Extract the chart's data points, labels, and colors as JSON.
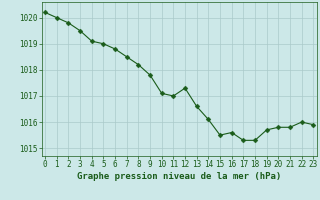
{
  "x": [
    0,
    1,
    2,
    3,
    4,
    5,
    6,
    7,
    8,
    9,
    10,
    11,
    12,
    13,
    14,
    15,
    16,
    17,
    18,
    19,
    20,
    21,
    22,
    23
  ],
  "y": [
    1020.2,
    1020.0,
    1019.8,
    1019.5,
    1019.1,
    1019.0,
    1018.8,
    1018.5,
    1018.2,
    1017.8,
    1017.1,
    1017.0,
    1017.3,
    1016.6,
    1016.1,
    1015.5,
    1015.6,
    1015.3,
    1015.3,
    1015.7,
    1015.8,
    1015.8,
    1016.0,
    1015.9
  ],
  "line_color": "#1a5c1a",
  "marker": "D",
  "marker_size": 2.5,
  "bg_color": "#cce8e8",
  "grid_color": "#aacaca",
  "xlabel": "Graphe pression niveau de la mer (hPa)",
  "xlabel_color": "#1a5c1a",
  "tick_color": "#1a5c1a",
  "ylim": [
    1014.7,
    1020.6
  ],
  "yticks": [
    1015,
    1016,
    1017,
    1018,
    1019,
    1020
  ],
  "xticks": [
    0,
    1,
    2,
    3,
    4,
    5,
    6,
    7,
    8,
    9,
    10,
    11,
    12,
    13,
    14,
    15,
    16,
    17,
    18,
    19,
    20,
    21,
    22,
    23
  ],
  "tick_fontsize": 5.5,
  "xlabel_fontsize": 6.5
}
